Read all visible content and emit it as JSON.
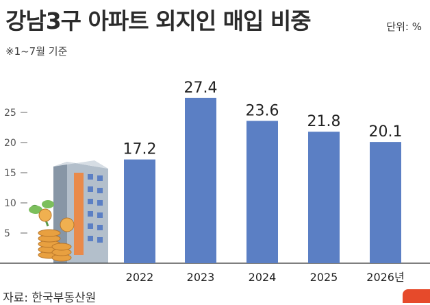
{
  "header": {
    "title": "강남3구 아파트 외지인 매입 비중",
    "unit": "단위: %",
    "subtitle": "※1~7월 기준"
  },
  "footer": {
    "source": "자료: 한국부동산원"
  },
  "chart_data": {
    "type": "bar",
    "categories": [
      "2022",
      "2023",
      "2024",
      "2025",
      "2026년"
    ],
    "values": [
      17.2,
      27.4,
      23.6,
      21.8,
      20.1
    ],
    "value_labels": [
      "17.2",
      "27.4",
      "23.6",
      "21.8",
      "20.1"
    ],
    "yticks": [
      5,
      10,
      15,
      20,
      25
    ],
    "ylim": [
      0,
      30
    ],
    "bar_color": "#5b7fc4",
    "grid": false,
    "legend": "none"
  },
  "illustration": {
    "icon": "apartment-building-with-coins-icon",
    "colors": {
      "building": "#9aa8b8",
      "windows": "#5b7fc4",
      "accent": "#e98a4a",
      "coins": "#e8a040"
    }
  }
}
